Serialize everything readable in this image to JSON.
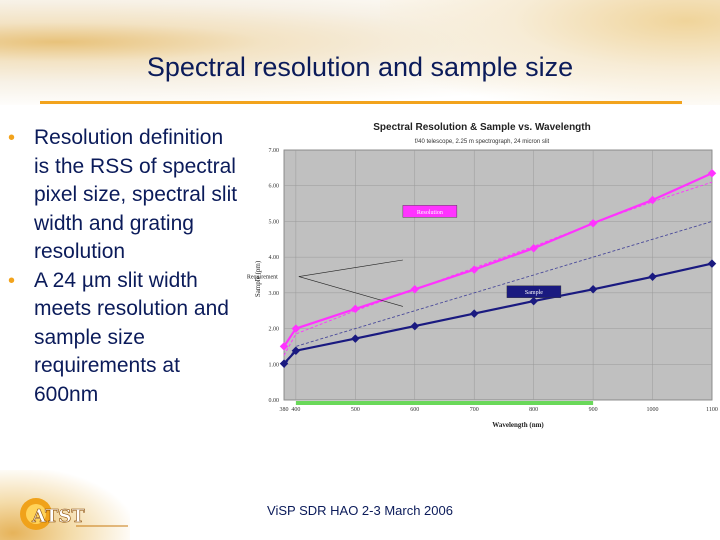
{
  "slide": {
    "title": "Spectral resolution and sample size",
    "bullets": [
      "Resolution definition is the RSS of spectral pixel size, spectral slit width and grating resolution",
      "A 24 µm slit width meets resolution and sample size requirements at 600nm"
    ],
    "footer": "ViSP SDR HAO 2-3 March 2006",
    "logo_text": "ATST",
    "accent_color": "#f2a31c",
    "text_color": "#0b1b5a"
  },
  "chart_data": {
    "type": "line",
    "title": "Spectral Resolution & Sample vs. Wavelength",
    "subtitle": "f/40 telescope, 2.25 m spectrograph, 24 micron slit",
    "xlabel": "Wavelength (nm)",
    "ylabel": "Sample (pm)",
    "x": [
      380,
      400,
      500,
      600,
      700,
      800,
      900,
      1000,
      1100
    ],
    "xticks": [
      "380",
      "400",
      "500",
      "600",
      "700",
      "800",
      "900",
      "1000",
      "1100"
    ],
    "xlim": [
      380,
      1100
    ],
    "ylim": [
      0,
      7
    ],
    "yticks": [
      "0.00",
      "1.00",
      "2.00",
      "3.00",
      "4.00",
      "5.00",
      "6.00",
      "7.00"
    ],
    "grid": true,
    "plot_background": "#c0c0c0",
    "series": [
      {
        "name": "Resolution",
        "color": "#ff33ff",
        "values": [
          1.5,
          2.0,
          2.55,
          3.1,
          3.65,
          4.25,
          4.95,
          5.6,
          6.35
        ]
      },
      {
        "name": "Sample",
        "color": "#1a1a80",
        "values": [
          1.02,
          1.38,
          1.72,
          2.07,
          2.42,
          2.77,
          3.1,
          3.45,
          3.82
        ]
      }
    ],
    "requirement_lines": [
      {
        "color": "#ff33ff",
        "values": [
          1.25,
          1.85,
          2.5,
          3.1,
          3.7,
          4.3,
          4.95,
          5.55,
          6.1
        ]
      },
      {
        "color": "#4a4a9a",
        "values": [
          0.9,
          1.5,
          2.0,
          2.5,
          3.0,
          3.5,
          4.0,
          4.5,
          5.0
        ]
      }
    ],
    "annotations": {
      "requirement": "Requirement"
    },
    "highlight_range": {
      "from": 400,
      "to": 900,
      "color": "#6ad85a"
    }
  }
}
